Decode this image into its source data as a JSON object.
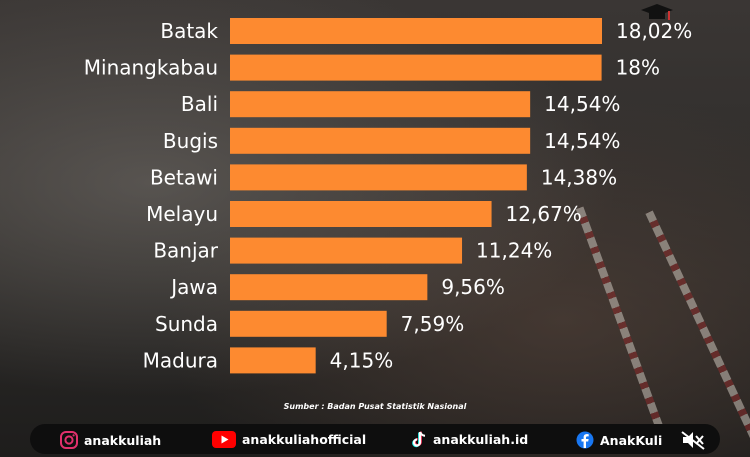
{
  "chart_data": {
    "type": "bar",
    "orientation": "horizontal",
    "title": "",
    "xlabel": "",
    "ylabel": "",
    "xlim": [
      0,
      18.02
    ],
    "grid": false,
    "categories": [
      "Batak",
      "Minangkabau",
      "Bali",
      "Bugis",
      "Betawi",
      "Melayu",
      "Banjar",
      "Jawa",
      "Sunda",
      "Madura"
    ],
    "values": [
      18.02,
      18.0,
      14.54,
      14.54,
      14.38,
      12.67,
      11.24,
      9.56,
      7.59,
      4.15
    ],
    "labels": [
      "18,02%",
      "18%",
      "14,54%",
      "14,54%",
      "14,38%",
      "12,67%",
      "11,24%",
      "9,56%",
      "7,59%",
      "4,15%"
    ],
    "bar_color": "#fd8a30"
  },
  "source_text": "Sumber : Badan Pusat Statistik Nasional",
  "footer": {
    "instagram": "anakkuliah",
    "youtube": "anakkuliahofficial",
    "tiktok": "anakkuliah.id",
    "facebook": "AnakKuli"
  },
  "icons": [
    "instagram-icon",
    "youtube-icon",
    "tiktok-icon",
    "facebook-icon",
    "mute-icon",
    "graduation-cap-icon"
  ]
}
